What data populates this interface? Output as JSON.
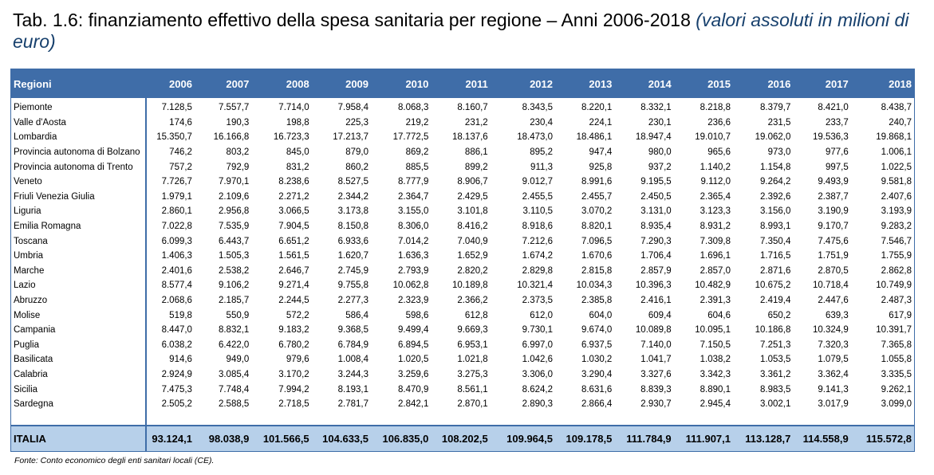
{
  "title": {
    "main": "Tab. 1.6: finanziamento effettivo della spesa sanitaria per regione – Anni 2006-2018",
    "sub": "(valori assoluti in milioni di euro)"
  },
  "table": {
    "header": [
      "Regioni",
      "2006",
      "2007",
      "2008",
      "2009",
      "2010",
      "2011",
      "2012",
      "2013",
      "2014",
      "2015",
      "2016",
      "2017",
      "2018"
    ],
    "rows": [
      [
        "Piemonte",
        "7.128,5",
        "7.557,7",
        "7.714,0",
        "7.958,4",
        "8.068,3",
        "8.160,7",
        "8.343,5",
        "8.220,1",
        "8.332,1",
        "8.218,8",
        "8.379,7",
        "8.421,0",
        "8.438,7"
      ],
      [
        "Valle d'Aosta",
        "174,6",
        "190,3",
        "198,8",
        "225,3",
        "219,2",
        "231,2",
        "230,4",
        "224,1",
        "230,1",
        "236,6",
        "231,5",
        "233,7",
        "240,7"
      ],
      [
        "Lombardia",
        "15.350,7",
        "16.166,8",
        "16.723,3",
        "17.213,7",
        "17.772,5",
        "18.137,6",
        "18.473,0",
        "18.486,1",
        "18.947,4",
        "19.010,7",
        "19.062,0",
        "19.536,3",
        "19.868,1"
      ],
      [
        "Provincia autonoma di Bolzano",
        "746,2",
        "803,2",
        "845,0",
        "879,0",
        "869,2",
        "886,1",
        "895,2",
        "947,4",
        "980,0",
        "965,6",
        "973,0",
        "977,6",
        "1.006,1"
      ],
      [
        "Provincia autonoma di Trento",
        "757,2",
        "792,9",
        "831,2",
        "860,2",
        "885,5",
        "899,2",
        "911,3",
        "925,8",
        "937,2",
        "1.140,2",
        "1.154,8",
        "997,5",
        "1.022,5"
      ],
      [
        "Veneto",
        "7.726,7",
        "7.970,1",
        "8.238,6",
        "8.527,5",
        "8.777,9",
        "8.906,7",
        "9.012,7",
        "8.991,6",
        "9.195,5",
        "9.112,0",
        "9.264,2",
        "9.493,9",
        "9.581,8"
      ],
      [
        "Friuli Venezia Giulia",
        "1.979,1",
        "2.109,6",
        "2.271,2",
        "2.344,2",
        "2.364,7",
        "2.429,5",
        "2.455,5",
        "2.455,7",
        "2.450,5",
        "2.365,4",
        "2.392,6",
        "2.387,7",
        "2.407,6"
      ],
      [
        "Liguria",
        "2.860,1",
        "2.956,8",
        "3.066,5",
        "3.173,8",
        "3.155,0",
        "3.101,8",
        "3.110,5",
        "3.070,2",
        "3.131,0",
        "3.123,3",
        "3.156,0",
        "3.190,9",
        "3.193,9"
      ],
      [
        "Emilia Romagna",
        "7.022,8",
        "7.535,9",
        "7.904,5",
        "8.150,8",
        "8.306,0",
        "8.416,2",
        "8.918,6",
        "8.820,1",
        "8.935,4",
        "8.931,2",
        "8.993,1",
        "9.170,7",
        "9.283,2"
      ],
      [
        "Toscana",
        "6.099,3",
        "6.443,7",
        "6.651,2",
        "6.933,6",
        "7.014,2",
        "7.040,9",
        "7.212,6",
        "7.096,5",
        "7.290,3",
        "7.309,8",
        "7.350,4",
        "7.475,6",
        "7.546,7"
      ],
      [
        "Umbria",
        "1.406,3",
        "1.505,3",
        "1.561,5",
        "1.620,7",
        "1.636,3",
        "1.652,9",
        "1.674,2",
        "1.670,6",
        "1.706,4",
        "1.696,1",
        "1.716,5",
        "1.751,9",
        "1.755,9"
      ],
      [
        "Marche",
        "2.401,6",
        "2.538,2",
        "2.646,7",
        "2.745,9",
        "2.793,9",
        "2.820,2",
        "2.829,8",
        "2.815,8",
        "2.857,9",
        "2.857,0",
        "2.871,6",
        "2.870,5",
        "2.862,8"
      ],
      [
        "Lazio",
        "8.577,4",
        "9.106,2",
        "9.271,4",
        "9.755,8",
        "10.062,8",
        "10.189,8",
        "10.321,4",
        "10.034,3",
        "10.396,3",
        "10.482,9",
        "10.675,2",
        "10.718,4",
        "10.749,9"
      ],
      [
        "Abruzzo",
        "2.068,6",
        "2.185,7",
        "2.244,5",
        "2.277,3",
        "2.323,9",
        "2.366,2",
        "2.373,5",
        "2.385,8",
        "2.416,1",
        "2.391,3",
        "2.419,4",
        "2.447,6",
        "2.487,3"
      ],
      [
        "Molise",
        "519,8",
        "550,9",
        "572,2",
        "586,4",
        "598,6",
        "612,8",
        "612,0",
        "604,0",
        "609,4",
        "604,6",
        "650,2",
        "639,3",
        "617,9"
      ],
      [
        "Campania",
        "8.447,0",
        "8.832,1",
        "9.183,2",
        "9.368,5",
        "9.499,4",
        "9.669,3",
        "9.730,1",
        "9.674,0",
        "10.089,8",
        "10.095,1",
        "10.186,8",
        "10.324,9",
        "10.391,7"
      ],
      [
        "Puglia",
        "6.038,2",
        "6.422,0",
        "6.780,2",
        "6.784,9",
        "6.894,5",
        "6.953,1",
        "6.997,0",
        "6.937,5",
        "7.140,0",
        "7.150,5",
        "7.251,3",
        "7.320,3",
        "7.365,8"
      ],
      [
        "Basilicata",
        "914,6",
        "949,0",
        "979,6",
        "1.008,4",
        "1.020,5",
        "1.021,8",
        "1.042,6",
        "1.030,2",
        "1.041,7",
        "1.038,2",
        "1.053,5",
        "1.079,5",
        "1.055,8"
      ],
      [
        "Calabria",
        "2.924,9",
        "3.085,4",
        "3.170,2",
        "3.244,3",
        "3.259,6",
        "3.275,3",
        "3.306,0",
        "3.290,4",
        "3.327,6",
        "3.342,3",
        "3.361,2",
        "3.362,4",
        "3.335,5"
      ],
      [
        "Sicilia",
        "7.475,3",
        "7.748,4",
        "7.994,2",
        "8.193,1",
        "8.470,9",
        "8.561,1",
        "8.624,2",
        "8.631,6",
        "8.839,3",
        "8.890,1",
        "8.983,5",
        "9.141,3",
        "9.262,1"
      ],
      [
        "Sardegna",
        "2.505,2",
        "2.588,5",
        "2.718,5",
        "2.781,7",
        "2.842,1",
        "2.870,1",
        "2.890,3",
        "2.866,4",
        "2.930,7",
        "2.945,4",
        "3.002,1",
        "3.017,9",
        "3.099,0"
      ]
    ],
    "total": [
      "ITALIA",
      "93.124,1",
      "98.038,9",
      "101.566,5",
      "104.633,5",
      "106.835,0",
      "108.202,5",
      "109.964,5",
      "109.178,5",
      "111.784,9",
      "111.907,1",
      "113.128,7",
      "114.558,9",
      "115.572,8"
    ]
  },
  "source": "Fonte: Conto economico degli enti sanitari locali (CE).",
  "colors": {
    "header_bg": "#3f6da8",
    "total_bg": "#b7d0ea",
    "subtitle": "#17406d"
  }
}
